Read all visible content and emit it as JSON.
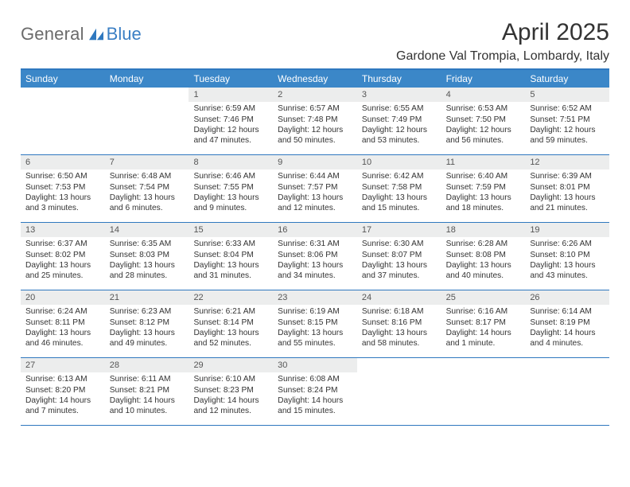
{
  "logo": {
    "general": "General",
    "blue": "Blue"
  },
  "title": "April 2025",
  "location": "Gardone Val Trompia, Lombardy, Italy",
  "colors": {
    "header_bg": "#3b87c8",
    "border": "#2f78bf",
    "daynum_bg": "#eceded",
    "logo_gray": "#6b6b6b",
    "logo_blue": "#3b7fc4"
  },
  "dayNames": [
    "Sunday",
    "Monday",
    "Tuesday",
    "Wednesday",
    "Thursday",
    "Friday",
    "Saturday"
  ],
  "weeks": [
    [
      {
        "empty": true
      },
      {
        "empty": true
      },
      {
        "n": "1",
        "sr": "Sunrise: 6:59 AM",
        "ss": "Sunset: 7:46 PM",
        "d1": "Daylight: 12 hours",
        "d2": "and 47 minutes."
      },
      {
        "n": "2",
        "sr": "Sunrise: 6:57 AM",
        "ss": "Sunset: 7:48 PM",
        "d1": "Daylight: 12 hours",
        "d2": "and 50 minutes."
      },
      {
        "n": "3",
        "sr": "Sunrise: 6:55 AM",
        "ss": "Sunset: 7:49 PM",
        "d1": "Daylight: 12 hours",
        "d2": "and 53 minutes."
      },
      {
        "n": "4",
        "sr": "Sunrise: 6:53 AM",
        "ss": "Sunset: 7:50 PM",
        "d1": "Daylight: 12 hours",
        "d2": "and 56 minutes."
      },
      {
        "n": "5",
        "sr": "Sunrise: 6:52 AM",
        "ss": "Sunset: 7:51 PM",
        "d1": "Daylight: 12 hours",
        "d2": "and 59 minutes."
      }
    ],
    [
      {
        "n": "6",
        "sr": "Sunrise: 6:50 AM",
        "ss": "Sunset: 7:53 PM",
        "d1": "Daylight: 13 hours",
        "d2": "and 3 minutes."
      },
      {
        "n": "7",
        "sr": "Sunrise: 6:48 AM",
        "ss": "Sunset: 7:54 PM",
        "d1": "Daylight: 13 hours",
        "d2": "and 6 minutes."
      },
      {
        "n": "8",
        "sr": "Sunrise: 6:46 AM",
        "ss": "Sunset: 7:55 PM",
        "d1": "Daylight: 13 hours",
        "d2": "and 9 minutes."
      },
      {
        "n": "9",
        "sr": "Sunrise: 6:44 AM",
        "ss": "Sunset: 7:57 PM",
        "d1": "Daylight: 13 hours",
        "d2": "and 12 minutes."
      },
      {
        "n": "10",
        "sr": "Sunrise: 6:42 AM",
        "ss": "Sunset: 7:58 PM",
        "d1": "Daylight: 13 hours",
        "d2": "and 15 minutes."
      },
      {
        "n": "11",
        "sr": "Sunrise: 6:40 AM",
        "ss": "Sunset: 7:59 PM",
        "d1": "Daylight: 13 hours",
        "d2": "and 18 minutes."
      },
      {
        "n": "12",
        "sr": "Sunrise: 6:39 AM",
        "ss": "Sunset: 8:01 PM",
        "d1": "Daylight: 13 hours",
        "d2": "and 21 minutes."
      }
    ],
    [
      {
        "n": "13",
        "sr": "Sunrise: 6:37 AM",
        "ss": "Sunset: 8:02 PM",
        "d1": "Daylight: 13 hours",
        "d2": "and 25 minutes."
      },
      {
        "n": "14",
        "sr": "Sunrise: 6:35 AM",
        "ss": "Sunset: 8:03 PM",
        "d1": "Daylight: 13 hours",
        "d2": "and 28 minutes."
      },
      {
        "n": "15",
        "sr": "Sunrise: 6:33 AM",
        "ss": "Sunset: 8:04 PM",
        "d1": "Daylight: 13 hours",
        "d2": "and 31 minutes."
      },
      {
        "n": "16",
        "sr": "Sunrise: 6:31 AM",
        "ss": "Sunset: 8:06 PM",
        "d1": "Daylight: 13 hours",
        "d2": "and 34 minutes."
      },
      {
        "n": "17",
        "sr": "Sunrise: 6:30 AM",
        "ss": "Sunset: 8:07 PM",
        "d1": "Daylight: 13 hours",
        "d2": "and 37 minutes."
      },
      {
        "n": "18",
        "sr": "Sunrise: 6:28 AM",
        "ss": "Sunset: 8:08 PM",
        "d1": "Daylight: 13 hours",
        "d2": "and 40 minutes."
      },
      {
        "n": "19",
        "sr": "Sunrise: 6:26 AM",
        "ss": "Sunset: 8:10 PM",
        "d1": "Daylight: 13 hours",
        "d2": "and 43 minutes."
      }
    ],
    [
      {
        "n": "20",
        "sr": "Sunrise: 6:24 AM",
        "ss": "Sunset: 8:11 PM",
        "d1": "Daylight: 13 hours",
        "d2": "and 46 minutes."
      },
      {
        "n": "21",
        "sr": "Sunrise: 6:23 AM",
        "ss": "Sunset: 8:12 PM",
        "d1": "Daylight: 13 hours",
        "d2": "and 49 minutes."
      },
      {
        "n": "22",
        "sr": "Sunrise: 6:21 AM",
        "ss": "Sunset: 8:14 PM",
        "d1": "Daylight: 13 hours",
        "d2": "and 52 minutes."
      },
      {
        "n": "23",
        "sr": "Sunrise: 6:19 AM",
        "ss": "Sunset: 8:15 PM",
        "d1": "Daylight: 13 hours",
        "d2": "and 55 minutes."
      },
      {
        "n": "24",
        "sr": "Sunrise: 6:18 AM",
        "ss": "Sunset: 8:16 PM",
        "d1": "Daylight: 13 hours",
        "d2": "and 58 minutes."
      },
      {
        "n": "25",
        "sr": "Sunrise: 6:16 AM",
        "ss": "Sunset: 8:17 PM",
        "d1": "Daylight: 14 hours",
        "d2": "and 1 minute."
      },
      {
        "n": "26",
        "sr": "Sunrise: 6:14 AM",
        "ss": "Sunset: 8:19 PM",
        "d1": "Daylight: 14 hours",
        "d2": "and 4 minutes."
      }
    ],
    [
      {
        "n": "27",
        "sr": "Sunrise: 6:13 AM",
        "ss": "Sunset: 8:20 PM",
        "d1": "Daylight: 14 hours",
        "d2": "and 7 minutes."
      },
      {
        "n": "28",
        "sr": "Sunrise: 6:11 AM",
        "ss": "Sunset: 8:21 PM",
        "d1": "Daylight: 14 hours",
        "d2": "and 10 minutes."
      },
      {
        "n": "29",
        "sr": "Sunrise: 6:10 AM",
        "ss": "Sunset: 8:23 PM",
        "d1": "Daylight: 14 hours",
        "d2": "and 12 minutes."
      },
      {
        "n": "30",
        "sr": "Sunrise: 6:08 AM",
        "ss": "Sunset: 8:24 PM",
        "d1": "Daylight: 14 hours",
        "d2": "and 15 minutes."
      },
      {
        "empty": true
      },
      {
        "empty": true
      },
      {
        "empty": true
      }
    ]
  ]
}
